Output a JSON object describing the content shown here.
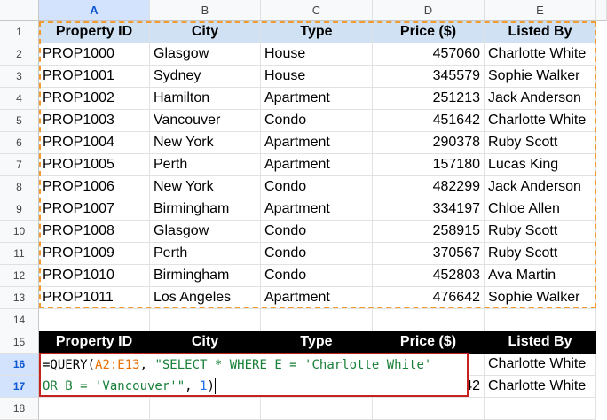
{
  "columns": [
    "A",
    "B",
    "C",
    "D",
    "E"
  ],
  "row_numbers": [
    "1",
    "2",
    "3",
    "4",
    "5",
    "6",
    "7",
    "8",
    "9",
    "10",
    "11",
    "12",
    "13",
    "14",
    "15",
    "16",
    "17",
    "18"
  ],
  "table": {
    "headers": [
      "Property ID",
      "City",
      "Type",
      "Price ($)",
      "Listed By"
    ],
    "rows": [
      [
        "PROP1000",
        "Glasgow",
        "House",
        "457060",
        "Charlotte White"
      ],
      [
        "PROP1001",
        "Sydney",
        "House",
        "345579",
        "Sophie Walker"
      ],
      [
        "PROP1002",
        "Hamilton",
        "Apartment",
        "251213",
        "Jack Anderson"
      ],
      [
        "PROP1003",
        "Vancouver",
        "Condo",
        "451642",
        "Charlotte White"
      ],
      [
        "PROP1004",
        "New York",
        "Apartment",
        "290378",
        "Ruby Scott"
      ],
      [
        "PROP1005",
        "Perth",
        "Apartment",
        "157180",
        "Lucas King"
      ],
      [
        "PROP1006",
        "New York",
        "Condo",
        "482299",
        "Jack Anderson"
      ],
      [
        "PROP1007",
        "Birmingham",
        "Apartment",
        "334197",
        "Chloe Allen"
      ],
      [
        "PROP1008",
        "Glasgow",
        "Condo",
        "258915",
        "Ruby Scott"
      ],
      [
        "PROP1009",
        "Perth",
        "Condo",
        "370567",
        "Ruby Scott"
      ],
      [
        "PROP1010",
        "Birmingham",
        "Condo",
        "452803",
        "Ava Martin"
      ],
      [
        "PROP1011",
        "Los Angeles",
        "Apartment",
        "476642",
        "Sophie Walker"
      ]
    ]
  },
  "result": {
    "headers": [
      "Property ID",
      "City",
      "Type",
      "Price ($)",
      "Listed By"
    ],
    "row16_e": "Charlotte White",
    "row17_d_partial": "42",
    "row17_e": "Charlotte White"
  },
  "formula": {
    "line1": {
      "p1": "=QUERY(",
      "p2": "A2:E13",
      "p3": ", ",
      "p4": "\"SELECT * WHERE E = 'Charlotte White'"
    },
    "line2": {
      "p1": "OR B = 'Vancouver'\"",
      "p2": ", ",
      "p3": "1",
      "p4": ")"
    }
  },
  "colors": {
    "header_fill": "#cfe1f3",
    "result_header_fill": "#000000",
    "copy_border": "#f29b30",
    "edit_border": "#c5221f"
  }
}
